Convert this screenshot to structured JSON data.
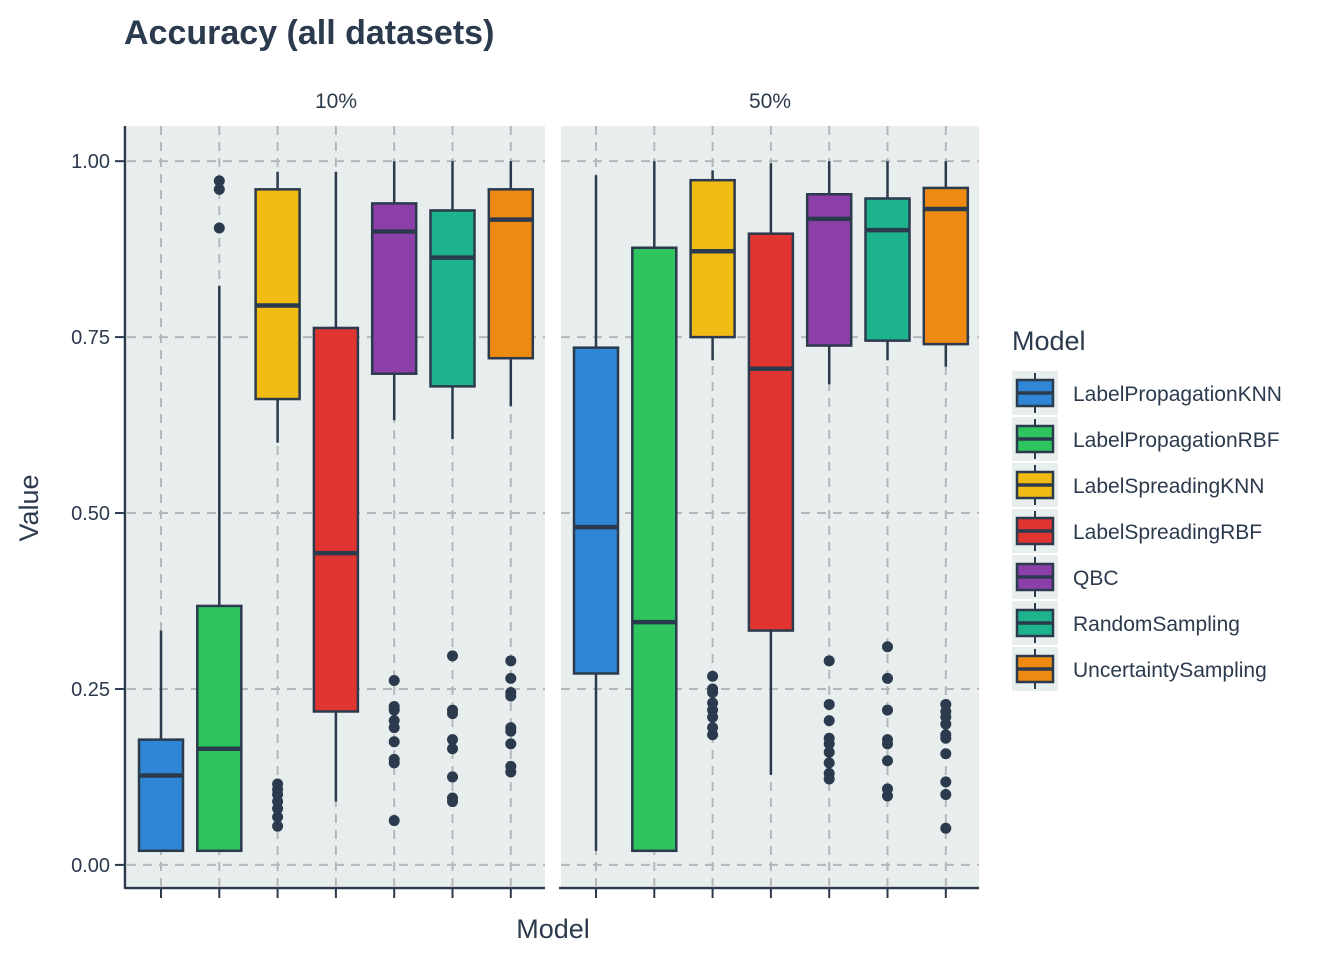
{
  "chart_data": {
    "type": "boxplot",
    "title": "Accuracy (all datasets)",
    "xlabel": "Model",
    "ylabel": "Value",
    "ylim": [
      -0.03,
      1.05
    ],
    "yticks": [
      0.0,
      0.25,
      0.5,
      0.75,
      1.0
    ],
    "ytick_labels": [
      "0.00",
      "0.25",
      "0.50",
      "0.75",
      "1.00"
    ],
    "grid": true,
    "legend": {
      "title": "Model",
      "placement": "right",
      "entries": [
        {
          "name": "LabelPropagationKNN",
          "color": "#2e86d4"
        },
        {
          "name": "LabelPropagationRBF",
          "color": "#2ec55e"
        },
        {
          "name": "LabelSpreadingKNN",
          "color": "#f0bc14"
        },
        {
          "name": "LabelSpreadingRBF",
          "color": "#e03530"
        },
        {
          "name": "QBC",
          "color": "#8c3fa8"
        },
        {
          "name": "RandomSampling",
          "color": "#1db38c"
        },
        {
          "name": "UncertaintySampling",
          "color": "#ee8a12"
        }
      ]
    },
    "colors": {
      "panel_bg": "#e8eded",
      "grid": "#b4b8bb",
      "ink": "#2b3a4d"
    },
    "facets": [
      {
        "label": "10%",
        "boxes": [
          {
            "model": "LabelPropagationKNN",
            "min": 0.02,
            "q1": 0.02,
            "median": 0.127,
            "q3": 0.178,
            "max": 0.333,
            "outliers": []
          },
          {
            "model": "LabelPropagationRBF",
            "min": 0.02,
            "q1": 0.02,
            "median": 0.165,
            "q3": 0.368,
            "max": 0.823,
            "outliers": [
              0.905,
              0.96,
              0.972
            ]
          },
          {
            "model": "LabelSpreadingKNN",
            "min": 0.6,
            "q1": 0.662,
            "median": 0.795,
            "q3": 0.96,
            "max": 0.985,
            "outliers": [
              0.055,
              0.068,
              0.08,
              0.09,
              0.1,
              0.107,
              0.115
            ]
          },
          {
            "model": "LabelSpreadingRBF",
            "min": 0.09,
            "q1": 0.218,
            "median": 0.443,
            "q3": 0.763,
            "max": 0.985,
            "outliers": []
          },
          {
            "model": "QBC",
            "min": 0.632,
            "q1": 0.698,
            "median": 0.9,
            "q3": 0.94,
            "max": 1.0,
            "outliers": [
              0.063,
              0.145,
              0.15,
              0.175,
              0.195,
              0.205,
              0.22,
              0.225,
              0.262
            ]
          },
          {
            "model": "RandomSampling",
            "min": 0.605,
            "q1": 0.68,
            "median": 0.863,
            "q3": 0.93,
            "max": 1.0,
            "outliers": [
              0.09,
              0.095,
              0.125,
              0.165,
              0.178,
              0.215,
              0.22,
              0.297
            ]
          },
          {
            "model": "UncertaintySampling",
            "min": 0.652,
            "q1": 0.72,
            "median": 0.917,
            "q3": 0.96,
            "max": 1.0,
            "outliers": [
              0.132,
              0.14,
              0.172,
              0.19,
              0.195,
              0.24,
              0.245,
              0.265,
              0.29
            ]
          }
        ]
      },
      {
        "label": "50%",
        "boxes": [
          {
            "model": "LabelPropagationKNN",
            "min": 0.02,
            "q1": 0.272,
            "median": 0.48,
            "q3": 0.735,
            "max": 0.98,
            "outliers": []
          },
          {
            "model": "LabelPropagationRBF",
            "min": 0.02,
            "q1": 0.02,
            "median": 0.345,
            "q3": 0.877,
            "max": 1.0,
            "outliers": []
          },
          {
            "model": "LabelSpreadingKNN",
            "min": 0.717,
            "q1": 0.75,
            "median": 0.872,
            "q3": 0.973,
            "max": 0.987,
            "outliers": [
              0.185,
              0.195,
              0.21,
              0.22,
              0.23,
              0.245,
              0.25,
              0.268
            ]
          },
          {
            "model": "LabelSpreadingRBF",
            "min": 0.128,
            "q1": 0.333,
            "median": 0.705,
            "q3": 0.897,
            "max": 0.997,
            "outliers": []
          },
          {
            "model": "QBC",
            "min": 0.683,
            "q1": 0.738,
            "median": 0.918,
            "q3": 0.953,
            "max": 1.0,
            "outliers": [
              0.122,
              0.13,
              0.145,
              0.16,
              0.172,
              0.18,
              0.205,
              0.228,
              0.29
            ]
          },
          {
            "model": "RandomSampling",
            "min": 0.717,
            "q1": 0.745,
            "median": 0.902,
            "q3": 0.947,
            "max": 1.0,
            "outliers": [
              0.098,
              0.108,
              0.148,
              0.172,
              0.178,
              0.22,
              0.265,
              0.31
            ]
          },
          {
            "model": "UncertaintySampling",
            "min": 0.708,
            "q1": 0.74,
            "median": 0.932,
            "q3": 0.962,
            "max": 1.0,
            "outliers": [
              0.052,
              0.1,
              0.118,
              0.158,
              0.18,
              0.185,
              0.2,
              0.21,
              0.218,
              0.228
            ]
          }
        ]
      }
    ]
  }
}
